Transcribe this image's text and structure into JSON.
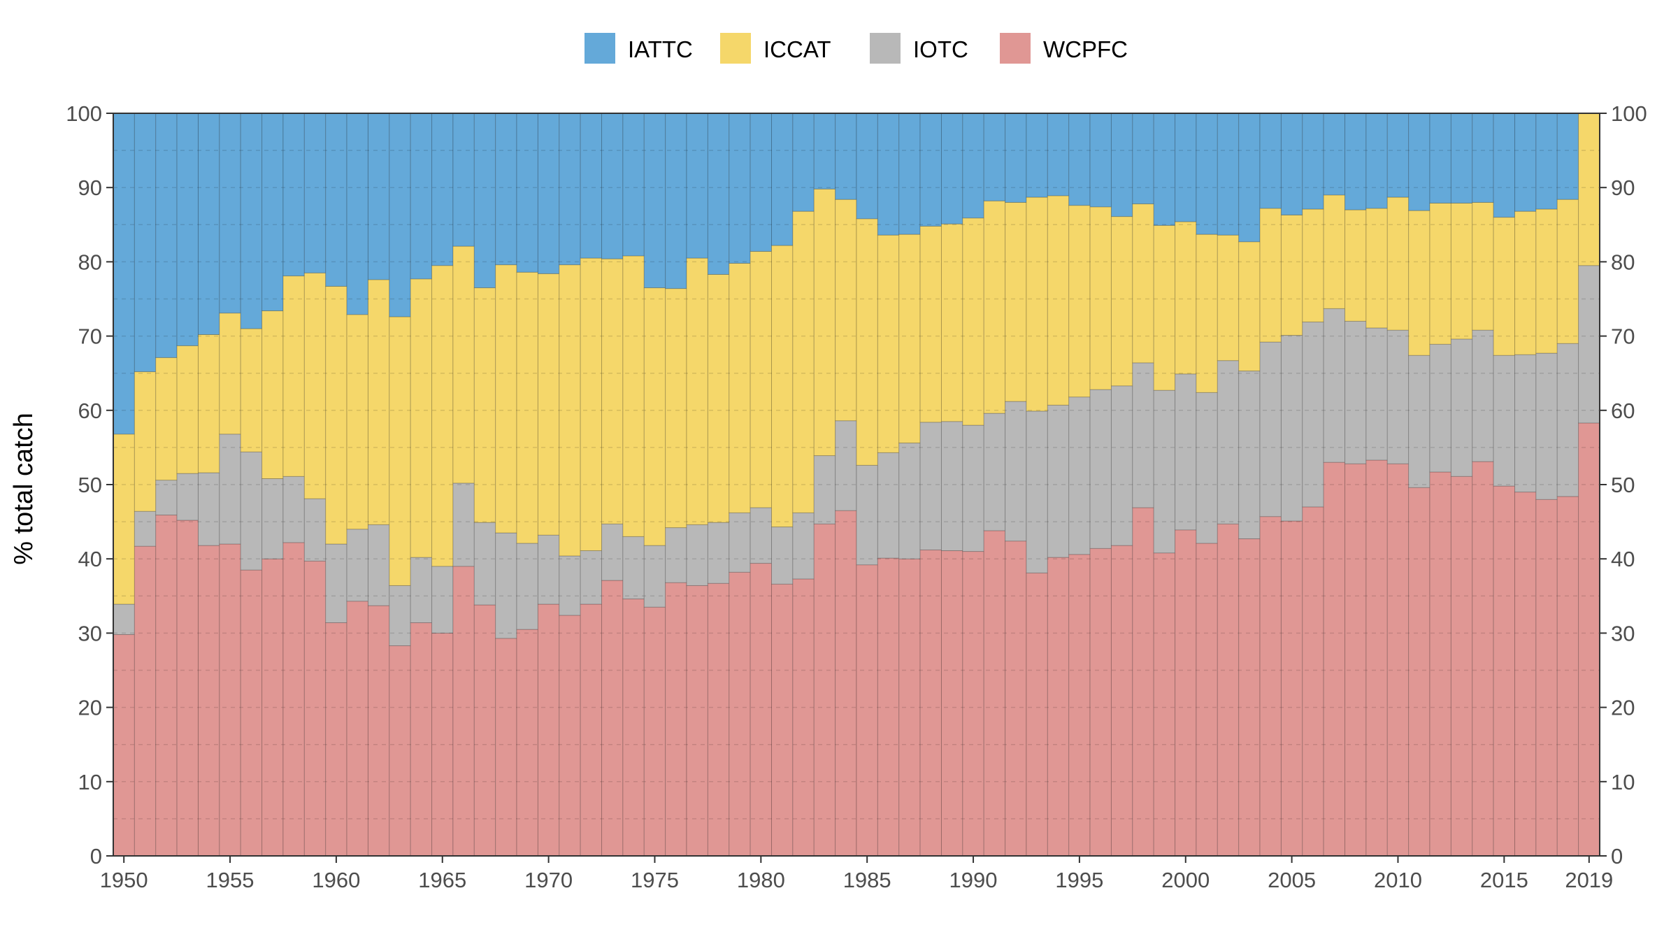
{
  "chart_data": {
    "type": "bar",
    "stacked": true,
    "percent": true,
    "title": "",
    "xlabel": "",
    "ylabel": "% total catch",
    "ylim": [
      0,
      100
    ],
    "yticks": [
      0,
      10,
      20,
      30,
      40,
      50,
      60,
      70,
      80,
      90,
      100
    ],
    "secondary_y_axis": true,
    "xticks": [
      "1950",
      "1955",
      "1960",
      "1965",
      "1970",
      "1975",
      "1980",
      "1985",
      "1990",
      "1995",
      "2000",
      "2005",
      "2010",
      "2015",
      "2019"
    ],
    "grid": "dashed-horizontal",
    "legend_position": "top",
    "stack_order": [
      "WCPFC",
      "IOTC",
      "ICCAT",
      "IATTC"
    ],
    "legend_order": [
      "IATTC",
      "ICCAT",
      "IOTC",
      "WCPFC"
    ],
    "colors": {
      "IATTC": "#64a9d9",
      "ICCAT": "#f5d76a",
      "IOTC": "#b8b8b8",
      "WCPFC": "#e09794"
    },
    "categories": [
      1950,
      1951,
      1952,
      1953,
      1954,
      1955,
      1956,
      1957,
      1958,
      1959,
      1960,
      1961,
      1962,
      1963,
      1964,
      1965,
      1966,
      1967,
      1968,
      1969,
      1970,
      1971,
      1972,
      1973,
      1974,
      1975,
      1976,
      1977,
      1978,
      1979,
      1980,
      1981,
      1982,
      1983,
      1984,
      1985,
      1986,
      1987,
      1988,
      1989,
      1990,
      1991,
      1992,
      1993,
      1994,
      1995,
      1996,
      1997,
      1998,
      1999,
      2000,
      2001,
      2002,
      2003,
      2004,
      2005,
      2006,
      2007,
      2008,
      2009,
      2010,
      2011,
      2012,
      2013,
      2014,
      2015,
      2016,
      2017,
      2018,
      2019
    ],
    "cumulative_tops": {
      "WCPFC": [
        29.8,
        41.7,
        45.9,
        45.2,
        41.8,
        42.0,
        38.5,
        40.0,
        42.2,
        39.7,
        31.4,
        34.3,
        33.7,
        28.3,
        31.4,
        30.0,
        39.0,
        33.8,
        29.3,
        30.5,
        33.9,
        32.4,
        33.9,
        37.1,
        34.6,
        33.5,
        36.8,
        36.4,
        36.7,
        38.2,
        39.4,
        36.6,
        37.3,
        44.7,
        46.5,
        39.2,
        40.1,
        40.0,
        41.2,
        41.1,
        41.0,
        43.8,
        42.4,
        38.1,
        40.2,
        40.6,
        41.4,
        41.8,
        46.9,
        40.8,
        43.9,
        42.1,
        44.7,
        42.7,
        45.7,
        45.1,
        47.0,
        53.0,
        52.8,
        53.3,
        52.8,
        49.6,
        51.7,
        51.1,
        53.1,
        49.8,
        49.0,
        48.0,
        48.4,
        58.3
      ],
      "IOTC": [
        33.9,
        46.4,
        50.6,
        51.5,
        51.6,
        56.8,
        54.4,
        50.8,
        51.1,
        48.1,
        42.0,
        44.0,
        44.6,
        36.4,
        40.2,
        39.0,
        50.2,
        44.9,
        43.5,
        42.1,
        43.2,
        40.4,
        41.1,
        44.7,
        43.0,
        41.8,
        44.2,
        44.6,
        44.9,
        46.2,
        46.9,
        44.3,
        46.2,
        53.9,
        58.6,
        52.6,
        54.3,
        55.6,
        58.4,
        58.5,
        58.0,
        59.6,
        61.2,
        59.9,
        60.7,
        61.8,
        62.8,
        63.3,
        66.4,
        62.7,
        64.9,
        62.4,
        66.7,
        65.3,
        69.2,
        70.1,
        71.9,
        73.7,
        72.0,
        71.1,
        70.8,
        67.4,
        68.9,
        69.6,
        70.8,
        67.4,
        67.5,
        67.7,
        69.0,
        79.5
      ],
      "ICCAT": [
        56.8,
        65.2,
        67.1,
        68.7,
        70.2,
        73.1,
        71.0,
        73.4,
        78.1,
        78.5,
        76.7,
        72.9,
        77.6,
        72.6,
        77.7,
        79.5,
        82.1,
        76.5,
        79.6,
        78.6,
        78.4,
        79.6,
        80.5,
        80.4,
        80.8,
        76.5,
        76.4,
        80.5,
        78.3,
        79.8,
        81.4,
        82.2,
        86.8,
        89.8,
        88.4,
        85.8,
        83.6,
        83.7,
        84.8,
        85.1,
        85.9,
        88.2,
        88.0,
        88.7,
        88.9,
        87.6,
        87.4,
        86.1,
        87.8,
        84.9,
        85.4,
        83.7,
        83.6,
        82.7,
        87.2,
        86.3,
        87.1,
        89.0,
        87.0,
        87.2,
        88.7,
        86.9,
        87.9,
        87.9,
        88.0,
        86.0,
        86.8,
        87.1,
        88.4,
        100.0
      ],
      "IATTC": [
        100,
        100,
        100,
        100,
        100,
        100,
        100,
        100,
        100,
        100,
        100,
        100,
        100,
        100,
        100,
        100,
        100,
        100,
        100,
        100,
        100,
        100,
        100,
        100,
        100,
        100,
        100,
        100,
        100,
        100,
        100,
        100,
        100,
        100,
        100,
        100,
        100,
        100,
        100,
        100,
        100,
        100,
        100,
        100,
        100,
        100,
        100,
        100,
        100,
        100,
        100,
        100,
        100,
        100,
        100,
        100,
        100,
        100,
        100,
        100,
        100,
        100,
        100,
        100,
        100,
        100,
        100,
        100,
        100,
        100
      ]
    }
  }
}
